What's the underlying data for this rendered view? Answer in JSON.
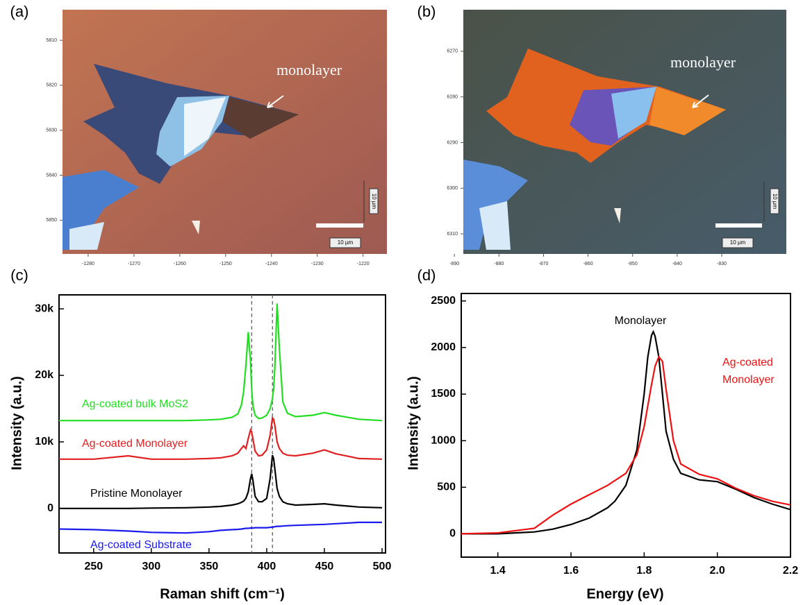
{
  "images": [
    {
      "label": "(a)",
      "annotation": "monolayer",
      "scale_bar_labels": [
        "10 µm",
        "10 µm"
      ],
      "xlim": [
        -1285.6,
        -1214.8
      ],
      "xticks": [
        -1280,
        -1270,
        -1260,
        -1250,
        -1240,
        -1230,
        -1220
      ],
      "ylim": [
        5803.2,
        5857.5
      ],
      "yticks": [
        5810,
        5820,
        5830,
        5840,
        5850
      ]
    },
    {
      "label": "(b)",
      "annotation": "monolayer",
      "scale_bar_labels": [
        "10 µm",
        "10 µm"
      ],
      "xlim": [
        -888,
        -815.5
      ],
      "xticks": [
        -890,
        -880,
        -870,
        -860,
        -850,
        -840,
        -830
      ],
      "ylim": [
        6260.9,
        6314.4
      ],
      "yticks": [
        6270,
        6280,
        6290,
        6300,
        6310
      ]
    }
  ],
  "chart_data": [
    {
      "type": "line",
      "label": "(c)",
      "xlabel": "Raman shift (cm⁻¹)",
      "ylabel": "Intensity (a.u.)",
      "xlim": [
        220,
        503
      ],
      "xticks": [
        250,
        300,
        350,
        400,
        450,
        500
      ],
      "ylim": [
        -6700,
        32100
      ],
      "yticks": [
        0,
        {
          "value": 10000,
          "label": "10k"
        },
        {
          "value": 20000,
          "label": "20k"
        },
        {
          "value": 30000,
          "label": "30k"
        }
      ],
      "vlines": [
        387,
        405
      ],
      "x": [
        220,
        250,
        280,
        300,
        330,
        350,
        360,
        370,
        375,
        378,
        380,
        382,
        384,
        386,
        387,
        388,
        390,
        393,
        396,
        400,
        403,
        405,
        406,
        407,
        409,
        411,
        414,
        418,
        425,
        440,
        450,
        460,
        480,
        500
      ],
      "series": [
        {
          "name": "Ag-coated bulk MoS2",
          "color": "#22dd22",
          "values": [
            13200,
            13200,
            13200,
            13200,
            13200,
            13300,
            13400,
            13700,
            14200,
            15500,
            17500,
            21500,
            26500,
            22000,
            18000,
            15500,
            14000,
            13500,
            13600,
            14000,
            15000,
            16500,
            18000,
            21000,
            30800,
            24000,
            16000,
            14300,
            13800,
            14000,
            14400,
            14000,
            13400,
            13200
          ]
        },
        {
          "name": "Ag-coated Monolayer",
          "color": "#e02020",
          "values": [
            7400,
            7400,
            7900,
            7400,
            7400,
            7500,
            7600,
            7900,
            8300,
            9000,
            9400,
            9000,
            10500,
            11800,
            11500,
            10500,
            8600,
            7900,
            8000,
            8800,
            11000,
            13600,
            13400,
            12500,
            10000,
            9000,
            8300,
            8000,
            7900,
            8300,
            8800,
            8200,
            7500,
            7400
          ]
        },
        {
          "name": "Pristine Monolayer",
          "color": "#000000",
          "values": [
            0,
            0,
            0,
            50,
            100,
            200,
            300,
            500,
            700,
            900,
            1100,
            1500,
            2500,
            4500,
            5200,
            4300,
            1800,
            1000,
            1000,
            1500,
            4500,
            8000,
            7500,
            6000,
            3000,
            1800,
            1000,
            700,
            500,
            600,
            700,
            500,
            200,
            100
          ]
        },
        {
          "name": "Ag-coated Substrate",
          "color": "#1a1aee",
          "values": [
            -3100,
            -3200,
            -3400,
            -3600,
            -3700,
            -3500,
            -3300,
            -3200,
            -3150,
            -3100,
            -3050,
            -3000,
            -3000,
            -2950,
            -2950,
            -2950,
            -2900,
            -2900,
            -2900,
            -2900,
            -2850,
            -2800,
            -2800,
            -2750,
            -2700,
            -2700,
            -2650,
            -2600,
            -2550,
            -2450,
            -2400,
            -2300,
            -2100,
            -2100
          ]
        }
      ]
    },
    {
      "type": "line",
      "label": "(d)",
      "xlabel": "Energy (eV)",
      "ylabel": "Intensity (a.u.)",
      "xlim": [
        1.3,
        2.2
      ],
      "xticks": [
        1.4,
        1.6,
        1.8,
        {
          "value": 2,
          "label": "2.0"
        },
        2.2
      ],
      "ylim": [
        -250,
        2580
      ],
      "yticks": [
        0,
        500,
        1000,
        1500,
        2000,
        2500
      ],
      "series": [
        {
          "name": "Monolayer",
          "color": "#000000",
          "x": [
            1.3,
            1.4,
            1.5,
            1.55,
            1.6,
            1.65,
            1.7,
            1.72,
            1.75,
            1.78,
            1.8,
            1.81,
            1.82,
            1.825,
            1.83,
            1.84,
            1.85,
            1.86,
            1.88,
            1.9,
            1.95,
            2.0,
            2.05,
            2.1,
            2.15,
            2.2
          ],
          "values": [
            0,
            0,
            20,
            50,
            100,
            170,
            280,
            350,
            520,
            900,
            1500,
            1900,
            2130,
            2170,
            2120,
            1900,
            1500,
            1100,
            800,
            650,
            580,
            560,
            480,
            390,
            320,
            260
          ]
        },
        {
          "name": "Ag-coated Monolayer",
          "color": "#ee1111",
          "x": [
            1.3,
            1.4,
            1.5,
            1.55,
            1.6,
            1.65,
            1.7,
            1.75,
            1.78,
            1.8,
            1.82,
            1.83,
            1.84,
            1.85,
            1.86,
            1.88,
            1.9,
            1.95,
            2.0,
            2.05,
            2.1,
            2.15,
            2.2
          ],
          "values": [
            0,
            10,
            60,
            200,
            320,
            420,
            520,
            650,
            850,
            1150,
            1600,
            1800,
            1900,
            1850,
            1550,
            1000,
            750,
            640,
            590,
            490,
            410,
            350,
            310
          ]
        }
      ]
    }
  ]
}
